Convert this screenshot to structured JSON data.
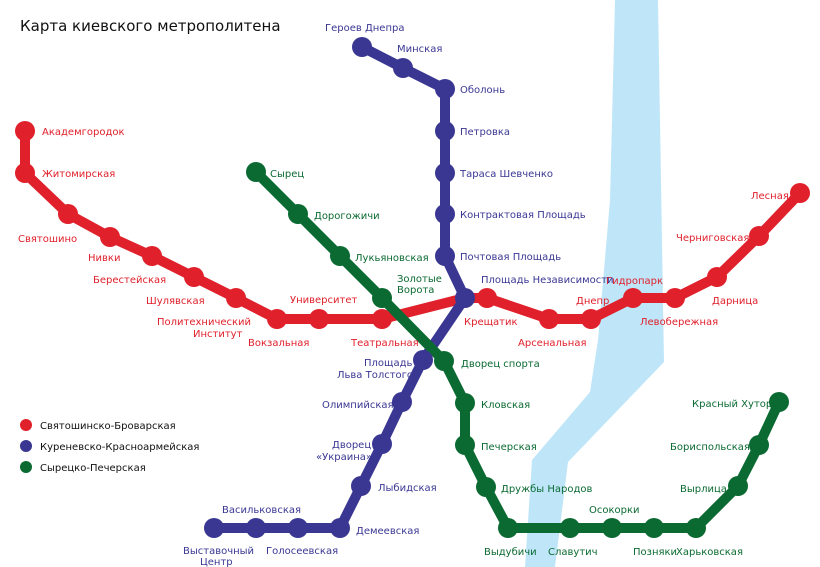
{
  "title": "Карта киевского метрополитена",
  "colors": {
    "river": "#bfe6f8",
    "red": "#e0202b",
    "blue": "#3a3793",
    "green": "#0b6a32"
  },
  "legend": [
    {
      "label": "Святошинско-Броварская",
      "color": "red"
    },
    {
      "label": "Куреневско-Красноармейская",
      "color": "blue"
    },
    {
      "label": "Сырецко-Печерская",
      "color": "green"
    }
  ],
  "lines": {
    "red": [
      "Академгородок",
      "Житомирская",
      "Святошино",
      "Нивки",
      "Берестейская",
      "Шулявская",
      "Политехнический Институт",
      "Вокзальная",
      "Университет",
      "Театральная",
      "Крещатик",
      "Арсенальная",
      "Днепр",
      "Гидропарк",
      "Левобережная",
      "Дарница",
      "Черниговская",
      "Лесная"
    ],
    "blue": [
      "Героев Днепра",
      "Минская",
      "Оболонь",
      "Петровка",
      "Тараса Шевченко",
      "Контрактовая Площадь",
      "Почтовая Площадь",
      "Площадь Независимости",
      "Площадь Льва Толстого",
      "Олимпийская",
      "Дворец «Украина»",
      "Лыбидская",
      "Демеевская",
      "Голосеевская",
      "Васильковская",
      "Выставочный Центр"
    ],
    "green": [
      "Сырец",
      "Дорогожичи",
      "Лукьяновская",
      "Золотые Ворота",
      "Дворец спорта",
      "Кловская",
      "Печерская",
      "Дружбы Народов",
      "Выдубичи",
      "Славутич",
      "Осокорки",
      "Позняки",
      "Харьковская",
      "Вырлица",
      "Бориспольская",
      "Красный Хутор"
    ]
  },
  "labels": {
    "akademgorodok": "Академгородок",
    "zhytomyrska": "Житомирская",
    "sviatoshyn": "Святошино",
    "nyvky": "Нивки",
    "beresteiska": "Берестейская",
    "shuliavska": "Шулявская",
    "politekh_1": "Политехнический",
    "politekh_2": "Институт",
    "vokzalna": "Вокзальная",
    "universytet": "Университет",
    "teatralna": "Театральная",
    "khreshchatyk": "Крещатик",
    "arsenalna": "Арсенальная",
    "dnipro": "Днепр",
    "hidropark": "Гидропарк",
    "livoberezhna": "Левобережная",
    "darnytsia": "Дарница",
    "chernihivska": "Черниговская",
    "lisova": "Лесная",
    "heroiv_dnipra": "Героев Днепра",
    "minska": "Минская",
    "obolon": "Оболонь",
    "petrivka": "Петровка",
    "tarasa": "Тараса Шевченко",
    "kontraktova": "Контрактовая Площадь",
    "poshtova": "Почтовая Площадь",
    "nezalezhnosti": "Площадь Независимости",
    "tolstoho_1": "Площадь",
    "tolstoho_2": "Льва Толстого",
    "olimpiiska": "Олимпийская",
    "ukraina_1": "Дворец",
    "ukraina_2": "«Украина»",
    "lybidska": "Лыбидская",
    "demiivska": "Демеевская",
    "holosiivska": "Голосеевская",
    "vasylkivska": "Васильковская",
    "vystavkovyi_1": "Выставочный",
    "vystavkovyi_2": "Центр",
    "syrets": "Сырец",
    "dorohozhychi": "Дорогожичи",
    "lukianivska": "Лукьяновская",
    "zoloti_1": "Золотые",
    "zoloti_2": "Ворота",
    "palats_sportu": "Дворец спорта",
    "klovska": "Кловская",
    "pecherska": "Печерская",
    "druzhby": "Дружбы Народов",
    "vydubychi": "Выдубичи",
    "slavutych": "Славутич",
    "osokorky": "Осокорки",
    "pozniaky": "Позняки",
    "kharkivska": "Харьковская",
    "vyrlytsia": "Вырлица",
    "boryspilska": "Бориспольская",
    "chervonyi_khutir": "Красный Хутор"
  }
}
